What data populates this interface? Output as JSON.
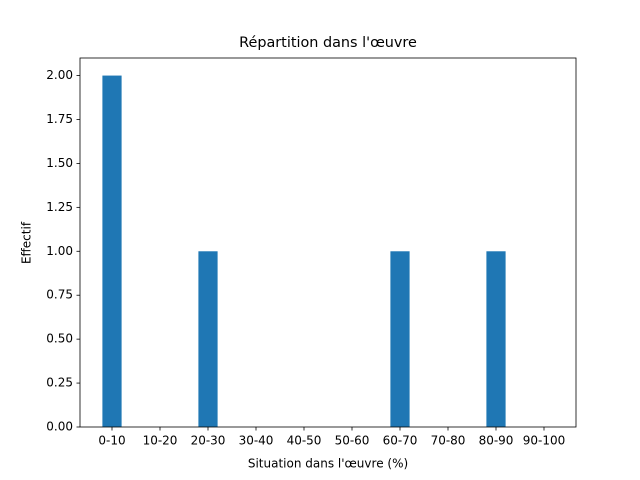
{
  "chart_data": {
    "type": "bar",
    "title": "Répartition dans l'œuvre",
    "x_label": "Situation dans l'œuvre (%)",
    "y_label": "Effectif",
    "categories": [
      "0-10",
      "10-20",
      "20-30",
      "30-40",
      "40-50",
      "50-60",
      "60-70",
      "70-80",
      "80-90",
      "90-100"
    ],
    "values": [
      2,
      0,
      1,
      0,
      0,
      0,
      1,
      0,
      1,
      0
    ],
    "color": "#1f77b4",
    "ylim": [
      0,
      2.1
    ],
    "yticks": [
      {
        "value": 0,
        "label": "0.00"
      },
      {
        "value": 0.25,
        "label": "0.25"
      },
      {
        "value": 0.5,
        "label": "0.50"
      },
      {
        "value": 0.75,
        "label": "0.75"
      },
      {
        "value": 1,
        "label": "1.00"
      },
      {
        "value": 1.25,
        "label": "1.25"
      },
      {
        "value": 1.5,
        "label": "1.50"
      },
      {
        "value": 1.75,
        "label": "1.75"
      },
      {
        "value": 2,
        "label": "2.00"
      }
    ],
    "grid": false
  }
}
